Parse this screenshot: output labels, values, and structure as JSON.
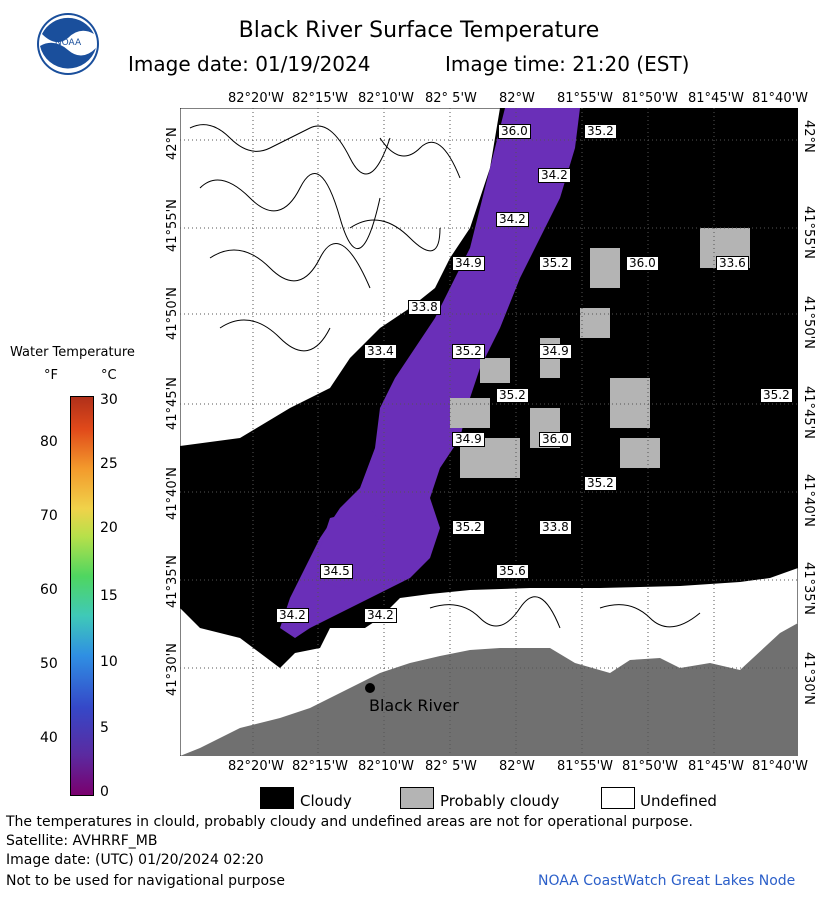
{
  "header": {
    "title": "Black River Surface Temperature",
    "image_date_label": "Image date: 01/19/2024",
    "image_time_label": "Image time: 21:20 (EST)",
    "logo_text": "NOAA"
  },
  "axes": {
    "longitude_ticks": [
      "82°20'W",
      "82°15'W",
      "82°10'W",
      "82° 5'W",
      "82°W",
      "81°55'W",
      "81°50'W",
      "81°45'W",
      "81°40'W"
    ],
    "latitude_ticks": [
      "42°N",
      "41°55'N",
      "41°50'N",
      "41°45'N",
      "41°40'N",
      "41°35'N",
      "41°30'N"
    ]
  },
  "map_labels": [
    {
      "text": "36.0"
    },
    {
      "text": "35.2"
    },
    {
      "text": "34.2"
    },
    {
      "text": "34.2"
    },
    {
      "text": "34.9"
    },
    {
      "text": "35.2"
    },
    {
      "text": "36.0"
    },
    {
      "text": "33.6"
    },
    {
      "text": "33.8"
    },
    {
      "text": "33.4"
    },
    {
      "text": "35.2"
    },
    {
      "text": "34.9"
    },
    {
      "text": "35.2"
    },
    {
      "text": "35.2"
    },
    {
      "text": "34.9"
    },
    {
      "text": "36.0"
    },
    {
      "text": "35.2"
    },
    {
      "text": "35.2"
    },
    {
      "text": "33.8"
    },
    {
      "text": "34.5"
    },
    {
      "text": "35.6"
    },
    {
      "text": "34.2"
    },
    {
      "text": "34.2"
    }
  ],
  "place": {
    "name": "Black River"
  },
  "colorbar": {
    "title": "Water Temperature",
    "unit_f": "°F",
    "unit_c": "°C",
    "f_ticks": [
      "80",
      "70",
      "60",
      "50",
      "40"
    ],
    "c_ticks": [
      "30",
      "25",
      "20",
      "15",
      "10",
      "5",
      "0"
    ]
  },
  "legend": {
    "cloudy": "Cloudy",
    "probably_cloudy": "Probably cloudy",
    "undefined": "Undefined"
  },
  "footer": {
    "disclaimer": "The temperatures in clould, probably cloudy and undefined areas are not for operational purpose.",
    "satellite": "Satellite: AVHRRF_MB",
    "utc_date": "Image date: (UTC) 01/20/2024  02:20",
    "nav_warning": "Not to be used for navigational purpose",
    "node": "NOAA CoastWatch Great Lakes Node"
  },
  "colors": {
    "cloudy": "#000000",
    "probably_cloudy": "#b4b4b4",
    "land": "#707070",
    "water_cold": "#6a2fb8"
  }
}
